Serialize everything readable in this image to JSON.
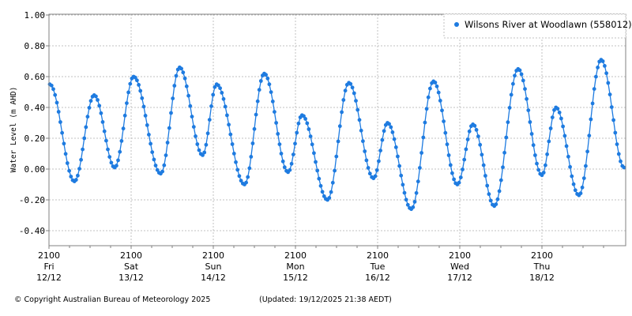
{
  "chart_data": {
    "type": "line",
    "title": "",
    "xlabel": "",
    "ylabel": "Water Level (m AHD)",
    "ylim": [
      -0.5,
      1.0
    ],
    "grid": true,
    "legend_position": "top-right",
    "yticks": [
      "1.00",
      "0.80",
      "0.60",
      "0.40",
      "0.20",
      "0.00",
      "-0.20",
      "-0.40"
    ],
    "ytick_values": [
      1.0,
      0.8,
      0.6,
      0.4,
      0.2,
      0.0,
      -0.2,
      -0.4
    ],
    "xticks": [
      {
        "time": "2100",
        "day": "Fri",
        "date": "12/12"
      },
      {
        "time": "2100",
        "day": "Sat",
        "date": "13/12"
      },
      {
        "time": "2100",
        "day": "Sun",
        "date": "14/12"
      },
      {
        "time": "2100",
        "day": "Mon",
        "date": "15/12"
      },
      {
        "time": "2100",
        "day": "Tue",
        "date": "16/12"
      },
      {
        "time": "2100",
        "day": "Wed",
        "date": "17/12"
      },
      {
        "time": "2100",
        "day": "Thu",
        "date": "18/12"
      }
    ],
    "series": [
      {
        "name": "Wilsons River at Woodlawn (558012)",
        "color": "#1e7be0",
        "x_days_since_fri_12_12_2100": [
          0.01,
          0.31,
          0.55,
          0.8,
          1.03,
          1.36,
          1.59,
          1.87,
          2.04,
          2.38,
          2.62,
          2.91,
          3.08,
          3.39,
          3.65,
          3.95,
          4.12,
          4.41,
          4.68,
          4.97,
          5.16,
          5.42,
          5.71,
          6.0,
          6.17,
          6.45,
          6.72,
          7.0
        ],
        "values": [
          0.55,
          -0.08,
          0.48,
          0.01,
          0.6,
          -0.03,
          0.66,
          0.09,
          0.55,
          -0.1,
          0.62,
          -0.02,
          0.35,
          -0.2,
          0.56,
          -0.06,
          0.3,
          -0.26,
          0.57,
          -0.1,
          0.29,
          -0.24,
          0.65,
          -0.04,
          0.4,
          -0.17,
          0.71,
          0.01
        ]
      }
    ]
  },
  "legend": {
    "label": "Wilsons River at Woodlawn (558012)"
  },
  "axis": {
    "ylabel": "Water Level (m AHD)"
  },
  "footer": {
    "copyright": "© Copyright Australian Bureau of Meteorology 2025",
    "updated": "(Updated: 19/12/2025 21:38 AEDT)"
  },
  "colors": {
    "series": "#1e7be0",
    "grid": "#c0c0c0",
    "axis": "#808080"
  }
}
